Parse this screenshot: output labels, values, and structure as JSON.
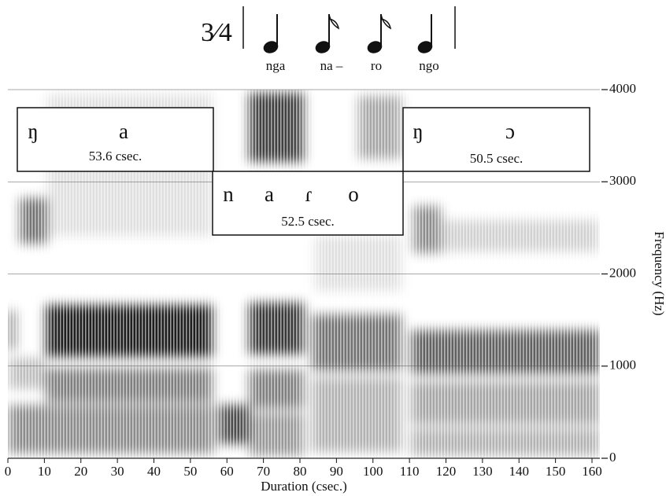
{
  "chart_data": {
    "type": "spectrogram",
    "time_signature": "3⁄4",
    "syllables": [
      "nga",
      "na –",
      "ro",
      "ngo"
    ],
    "segments": [
      {
        "phonemes": [
          "ŋ",
          "a"
        ],
        "duration": "53.6 csec."
      },
      {
        "phonemes": [
          "n",
          "a",
          "ɾ",
          "o"
        ],
        "duration": "52.5 csec."
      },
      {
        "phonemes": [
          "ŋ",
          "ɔ"
        ],
        "duration": "50.5 csec."
      }
    ],
    "xlabel": "Duration (csec.)",
    "ylabel": "Frequency (Hz)",
    "xlim": [
      0,
      160
    ],
    "xticks": [
      0,
      10,
      20,
      30,
      40,
      50,
      60,
      70,
      80,
      90,
      100,
      110,
      120,
      130,
      140,
      150,
      160
    ],
    "ylim": [
      0,
      4000
    ],
    "yticks": [
      0,
      1000,
      2000,
      3000,
      4000
    ],
    "grid": true
  }
}
